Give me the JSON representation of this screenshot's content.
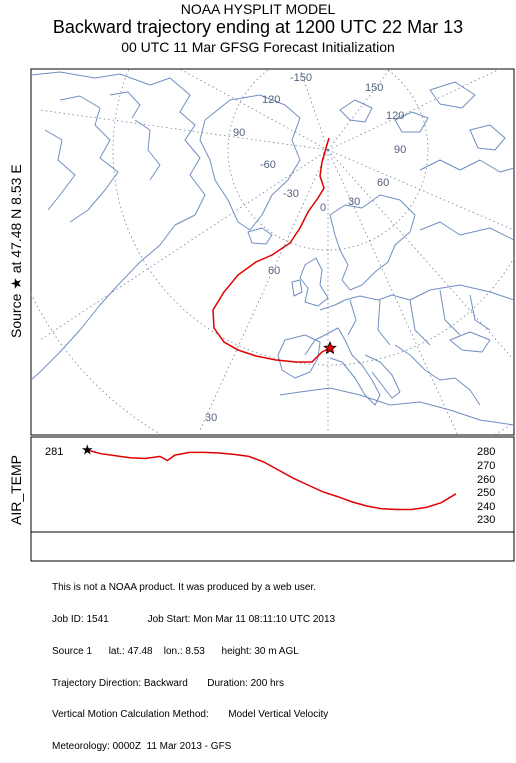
{
  "header": {
    "model": "NOAA HYSPLIT MODEL",
    "title": "Backward trajectory ending at 1200 UTC 22 Mar 13",
    "subtitle": "00 UTC 11 Mar    GFSG  Forecast Initialization"
  },
  "source_axis_label": "Source  ★  at   47.48 N   8.53 E",
  "map": {
    "longitude_labels": [
      "-150",
      "150",
      "120",
      "120",
      "90",
      "90",
      "-60",
      "60",
      "-30",
      "30",
      "0"
    ],
    "latitude_labels": [
      "60",
      "30"
    ],
    "trajectory_color": "#e00000",
    "map_color": "#6f8fc0",
    "grid_color": "#7080a0"
  },
  "meteo_panel": {
    "variable": "AIR_TEMP",
    "start_value": "281",
    "ticks": [
      "280",
      "270",
      "260",
      "250",
      "240",
      "230"
    ]
  },
  "footer": {
    "line1": "This is not a NOAA product. It was produced by a web user.",
    "line2": "Job ID: 1541              Job Start: Mon Mar 11 08:11:10 UTC 2013",
    "line3": "Source 1      lat.: 47.48    lon.: 8.53      height: 30 m AGL",
    "line4": "Trajectory Direction: Backward       Duration: 200 hrs",
    "line5": "Vertical Motion Calculation Method:       Model Vertical Velocity",
    "line6": "Meteorology: 0000Z  11 Mar 2013 - GFS"
  },
  "chart_data": {
    "type": "line",
    "title": "Backward trajectory ending at 1200 UTC 22 Mar 13",
    "ylabel": "AIR_TEMP",
    "ylim": [
      225,
      285
    ],
    "yticks": [
      280,
      270,
      260,
      250,
      240,
      230
    ],
    "x_hours_back": [
      0,
      8,
      16,
      24,
      32,
      40,
      44,
      48,
      56,
      64,
      72,
      80,
      88,
      96,
      104,
      112,
      120,
      128,
      136,
      144,
      152,
      160,
      168,
      176,
      184,
      192,
      200
    ],
    "series": [
      {
        "values": [
          281,
          278,
          276.5,
          275,
          274.5,
          276,
          273,
          277,
          279,
          279,
          278.5,
          277.5,
          276,
          272,
          266,
          260,
          255,
          250,
          246.5,
          242.5,
          239.5,
          237.5,
          237,
          237,
          238.5,
          242,
          248.5
        ]
      }
    ]
  }
}
